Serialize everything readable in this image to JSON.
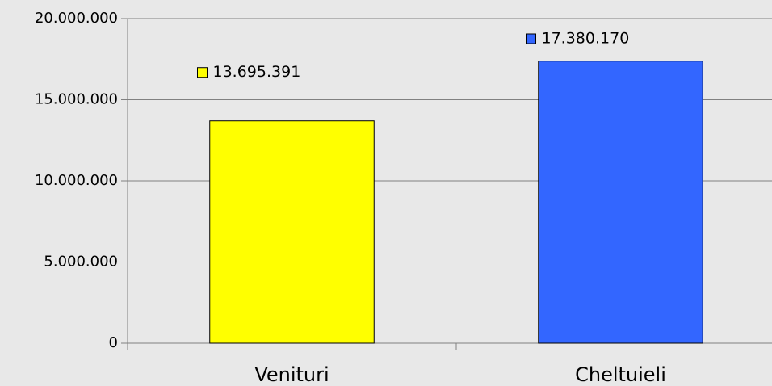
{
  "chart_data": {
    "type": "bar",
    "categories": [
      "Venituri",
      "Cheltuieli"
    ],
    "values": [
      13695391,
      17380170
    ],
    "value_labels": [
      "13.695.391",
      "17.380.170"
    ],
    "colors": [
      "#ffff00",
      "#3366ff"
    ],
    "ylim": [
      0,
      20000000
    ],
    "yticks": [
      0,
      {
        "value": 5000000,
        "label": "5.000.000"
      },
      {
        "value": 10000000,
        "label": "10.000.000"
      },
      {
        "value": 15000000,
        "label": "15.000.000"
      },
      {
        "value": 20000000,
        "label": "20.000.000"
      }
    ],
    "grid": true
  }
}
